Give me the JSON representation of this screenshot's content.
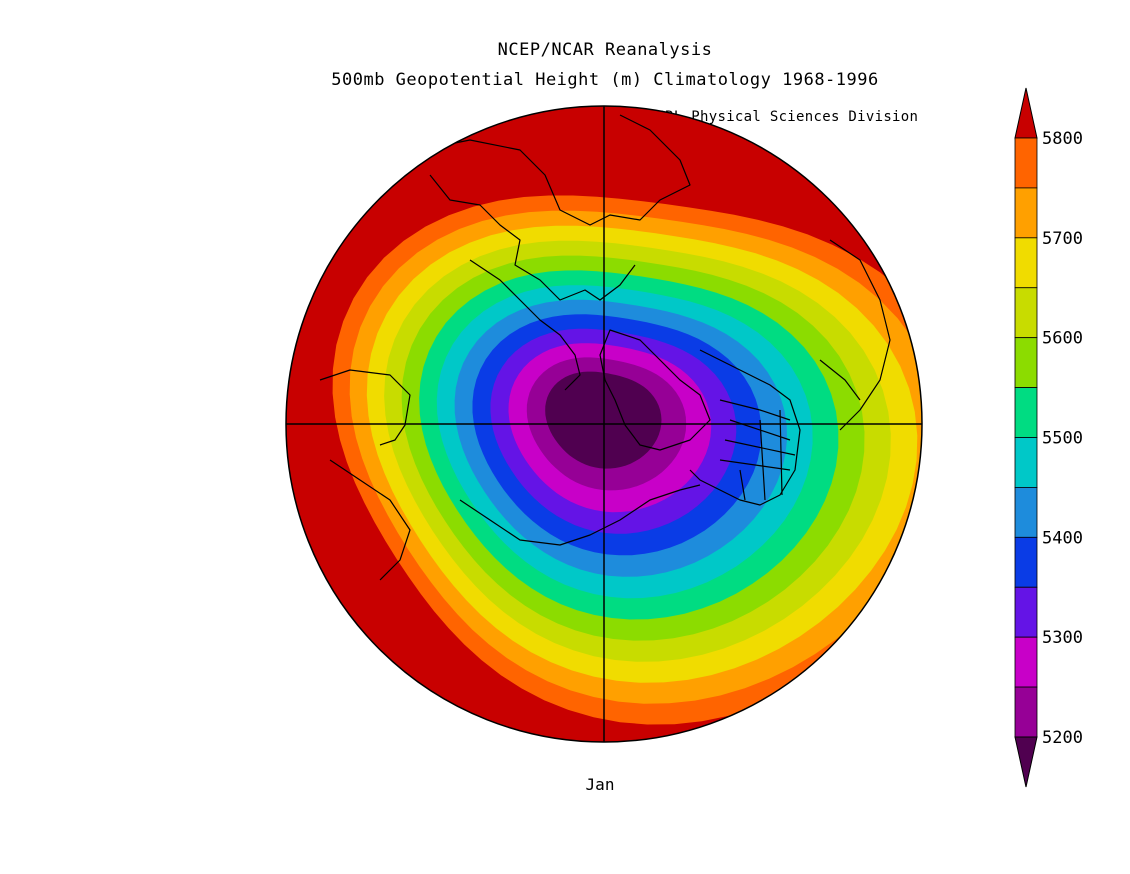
{
  "header": {
    "title_line1": "NCEP/NCAR Reanalysis",
    "title_line2": "500mb Geopotential Height (m) Climatology 1968-1996",
    "credit": "NOAA/ESRL Physical Sciences Division"
  },
  "map": {
    "projection": "north-polar-stereographic",
    "variable": "500mb Geopotential Height",
    "units": "m",
    "period": "1968-1996",
    "month_label": "Jan",
    "continent_outline_color": "#000000"
  },
  "colorbar": {
    "labels": [
      "5800",
      "5700",
      "5600",
      "5500",
      "5400",
      "5300",
      "5200"
    ],
    "levels": [
      5200,
      5250,
      5300,
      5350,
      5400,
      5450,
      5500,
      5550,
      5600,
      5650,
      5700,
      5750,
      5800
    ],
    "colors": [
      "#c80000",
      "#ff6400",
      "#ffa000",
      "#f0dc00",
      "#c8dc00",
      "#8cdc00",
      "#00dc82",
      "#00c8c8",
      "#1e8cdc",
      "#0a3ce6",
      "#6414e6",
      "#c800c8",
      "#960096",
      "#500050"
    ],
    "extend": "both"
  }
}
